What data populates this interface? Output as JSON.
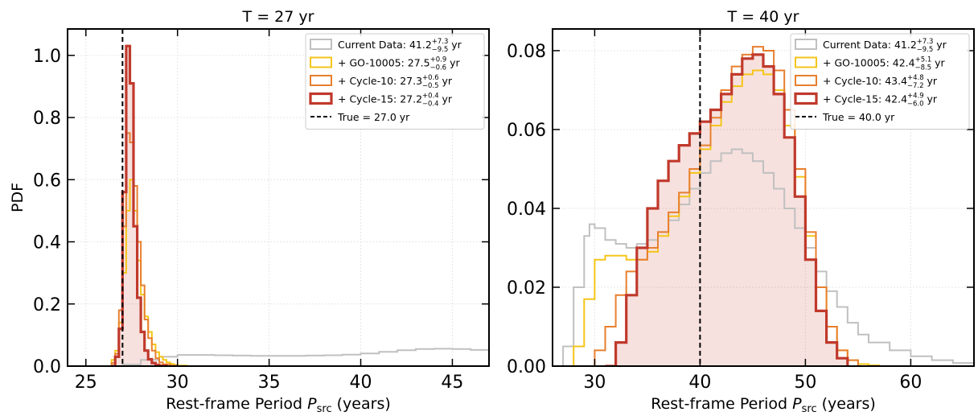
{
  "chart_data": [
    {
      "type": "histogram",
      "title": "T = 27 yr",
      "xlabel_main": "Rest-frame Period ",
      "xlabel_var": "P",
      "xlabel_sub": "src",
      "xlabel_tail": " (years)",
      "ylabel": "PDF",
      "xlim": [
        24,
        47
      ],
      "ylim": [
        0,
        1.085
      ],
      "xticks": [
        25,
        30,
        35,
        40,
        45
      ],
      "xtick_labels": [
        "25",
        "30",
        "35",
        "40",
        "45"
      ],
      "yticks": [
        0,
        0.2,
        0.4,
        0.6,
        0.8,
        1.0
      ],
      "ytick_labels": [
        "0.0",
        "0.2",
        "0.4",
        "0.6",
        "0.8",
        "1.0"
      ],
      "grid": true,
      "legend_position": "top-right",
      "true_value": 27.0,
      "series": [
        {
          "name": "Current Data",
          "label_prefix": "Current Data: 41.2",
          "label_sup": "+7.3",
          "label_sub": "−9.5",
          "label_suffix": " yr",
          "color": "#c0c0c0",
          "x": [
            26.0,
            27.0,
            28.0,
            29.0,
            30.0,
            31.0,
            32.0,
            33.0,
            34.0,
            35.0,
            36.0,
            37.0,
            38.0,
            39.0,
            40.0,
            41.0,
            42.0,
            43.0,
            44.0,
            45.0,
            46.0,
            47.0
          ],
          "y": [
            0.0,
            0.005,
            0.02,
            0.03,
            0.036,
            0.036,
            0.035,
            0.034,
            0.033,
            0.033,
            0.033,
            0.034,
            0.035,
            0.037,
            0.041,
            0.046,
            0.051,
            0.055,
            0.056,
            0.055,
            0.052,
            0.047
          ]
        },
        {
          "name": "+ GO-10005",
          "label_prefix": "+ GO-10005: 27.5",
          "label_sup": "+0.9",
          "label_sub": "−0.6",
          "label_suffix": " yr",
          "color": "#f5c518",
          "x": [
            26.2,
            26.4,
            26.6,
            26.8,
            27.0,
            27.2,
            27.4,
            27.6,
            27.8,
            28.0,
            28.2,
            28.4,
            28.6,
            28.8,
            29.0,
            29.2,
            29.4,
            29.6,
            29.8,
            30.0,
            30.5
          ],
          "y": [
            0.0,
            0.02,
            0.05,
            0.14,
            0.3,
            0.5,
            0.6,
            0.5,
            0.34,
            0.23,
            0.16,
            0.11,
            0.07,
            0.045,
            0.03,
            0.02,
            0.012,
            0.007,
            0.004,
            0.002,
            0.0
          ]
        },
        {
          "name": "+ Cycle-10",
          "label_prefix": "+ Cycle-10: 27.3",
          "label_sup": "+0.6",
          "label_sub": "−0.5",
          "label_suffix": " yr",
          "color": "#e87f2e",
          "x": [
            26.2,
            26.4,
            26.6,
            26.8,
            27.0,
            27.2,
            27.4,
            27.6,
            27.8,
            28.0,
            28.2,
            28.4,
            28.6,
            28.8,
            29.0,
            29.2,
            29.6,
            30.0
          ],
          "y": [
            0.0,
            0.01,
            0.04,
            0.18,
            0.45,
            0.75,
            0.72,
            0.58,
            0.4,
            0.26,
            0.15,
            0.09,
            0.05,
            0.025,
            0.012,
            0.006,
            0.002,
            0.0
          ]
        },
        {
          "name": "+ Cycle-15",
          "label_prefix": "+ Cycle-15: 27.2",
          "label_sup": "+0.4",
          "label_sub": "−0.4",
          "label_suffix": " yr",
          "color": "#c0392b",
          "x": [
            26.4,
            26.6,
            26.8,
            27.0,
            27.2,
            27.4,
            27.6,
            27.8,
            28.0,
            28.2,
            28.4,
            28.6,
            28.8,
            29.0,
            29.4
          ],
          "y": [
            0.0,
            0.03,
            0.12,
            0.56,
            1.03,
            0.91,
            0.45,
            0.22,
            0.11,
            0.05,
            0.022,
            0.01,
            0.004,
            0.001,
            0.0
          ]
        }
      ],
      "true_label": "True = 27.0 yr"
    },
    {
      "type": "histogram",
      "title": "T = 40 yr",
      "xlabel_main": "Rest-frame Period ",
      "xlabel_var": "P",
      "xlabel_sub": "src",
      "xlabel_tail": " (years)",
      "ylabel": "",
      "xlim": [
        26,
        66
      ],
      "ylim": [
        0,
        0.0855
      ],
      "xticks": [
        30,
        40,
        50,
        60
      ],
      "xtick_labels": [
        "30",
        "40",
        "50",
        "60"
      ],
      "yticks": [
        0,
        0.02,
        0.04,
        0.06,
        0.08
      ],
      "ytick_labels": [
        "0.00",
        "0.02",
        "0.04",
        "0.06",
        "0.08"
      ],
      "grid": true,
      "legend_position": "top-right",
      "true_value": 40.0,
      "series": [
        {
          "name": "Current Data",
          "label_prefix": "Current Data: 41.2",
          "label_sup": "+7.3",
          "label_sub": "−9.5",
          "label_suffix": " yr",
          "color": "#c0c0c0",
          "x": [
            26.0,
            27.0,
            28.0,
            29.0,
            29.5,
            30.0,
            31.0,
            32.0,
            33.0,
            34.0,
            35.0,
            36.0,
            37.0,
            38.0,
            39.0,
            40.0,
            41.0,
            42.0,
            43.0,
            44.0,
            45.0,
            46.0,
            47.0,
            48.0,
            49.0,
            50.0,
            51.0,
            52.0,
            53.0,
            54.0,
            55.0,
            56.0,
            58.0,
            60.0,
            62.0,
            64.0,
            66.0
          ],
          "y": [
            0.0,
            0.005,
            0.02,
            0.033,
            0.036,
            0.035,
            0.032,
            0.031,
            0.03,
            0.031,
            0.032,
            0.034,
            0.037,
            0.041,
            0.045,
            0.049,
            0.052,
            0.054,
            0.055,
            0.054,
            0.052,
            0.049,
            0.045,
            0.04,
            0.035,
            0.03,
            0.024,
            0.019,
            0.015,
            0.011,
            0.008,
            0.006,
            0.004,
            0.0025,
            0.0015,
            0.0008,
            0.0003
          ]
        },
        {
          "name": "+ GO-10005",
          "label_prefix": "+ GO-10005: 42.4",
          "label_sup": "+5.1",
          "label_sub": "−8.5",
          "label_suffix": " yr",
          "color": "#f5c518",
          "x": [
            27.0,
            28.0,
            29.0,
            30.0,
            31.0,
            32.0,
            33.0,
            34.0,
            35.0,
            36.0,
            37.0,
            38.0,
            39.0,
            40.0,
            41.0,
            42.0,
            43.0,
            44.0,
            45.0,
            46.0,
            47.0,
            48.0,
            49.0,
            50.0,
            51.0,
            52.0,
            53.0,
            54.0,
            55.0,
            56.0,
            57.0
          ],
          "y": [
            0.0,
            0.005,
            0.017,
            0.027,
            0.028,
            0.028,
            0.027,
            0.027,
            0.029,
            0.033,
            0.038,
            0.043,
            0.049,
            0.055,
            0.061,
            0.067,
            0.071,
            0.074,
            0.075,
            0.074,
            0.07,
            0.061,
            0.048,
            0.033,
            0.02,
            0.01,
            0.004,
            0.0015,
            0.0005,
            0.0002,
            0.0
          ]
        },
        {
          "name": "+ Cycle-10",
          "label_prefix": "+ Cycle-10: 43.4",
          "label_sup": "+4.8",
          "label_sub": "−7.2",
          "label_suffix": " yr",
          "color": "#e87f2e",
          "x": [
            29.0,
            30.0,
            31.0,
            32.0,
            33.0,
            34.0,
            35.0,
            36.0,
            37.0,
            38.0,
            39.0,
            40.0,
            41.0,
            42.0,
            43.0,
            44.0,
            45.0,
            46.0,
            47.0,
            48.0,
            49.0,
            50.0,
            51.0,
            52.0,
            53.0,
            54.0,
            55.0
          ],
          "y": [
            0.0,
            0.004,
            0.01,
            0.018,
            0.024,
            0.027,
            0.03,
            0.034,
            0.039,
            0.044,
            0.05,
            0.056,
            0.063,
            0.07,
            0.076,
            0.079,
            0.081,
            0.08,
            0.075,
            0.065,
            0.05,
            0.034,
            0.02,
            0.01,
            0.004,
            0.0015,
            0.0
          ]
        },
        {
          "name": "+ Cycle-15",
          "label_prefix": "+ Cycle-15: 42.4",
          "label_sup": "+4.9",
          "label_sub": "−6.0",
          "label_suffix": " yr",
          "color": "#c0392b",
          "x": [
            31.0,
            32.0,
            33.0,
            34.0,
            35.0,
            36.0,
            37.0,
            38.0,
            39.0,
            40.0,
            41.0,
            42.0,
            43.0,
            44.0,
            45.0,
            46.0,
            47.0,
            48.0,
            49.0,
            50.0,
            51.0,
            52.0,
            53.0,
            54.0
          ],
          "y": [
            0.0,
            0.006,
            0.018,
            0.03,
            0.04,
            0.047,
            0.052,
            0.056,
            0.059,
            0.062,
            0.065,
            0.069,
            0.074,
            0.078,
            0.079,
            0.076,
            0.069,
            0.058,
            0.043,
            0.027,
            0.014,
            0.006,
            0.002,
            0.0
          ]
        }
      ],
      "true_label": "True = 40.0 yr"
    }
  ]
}
